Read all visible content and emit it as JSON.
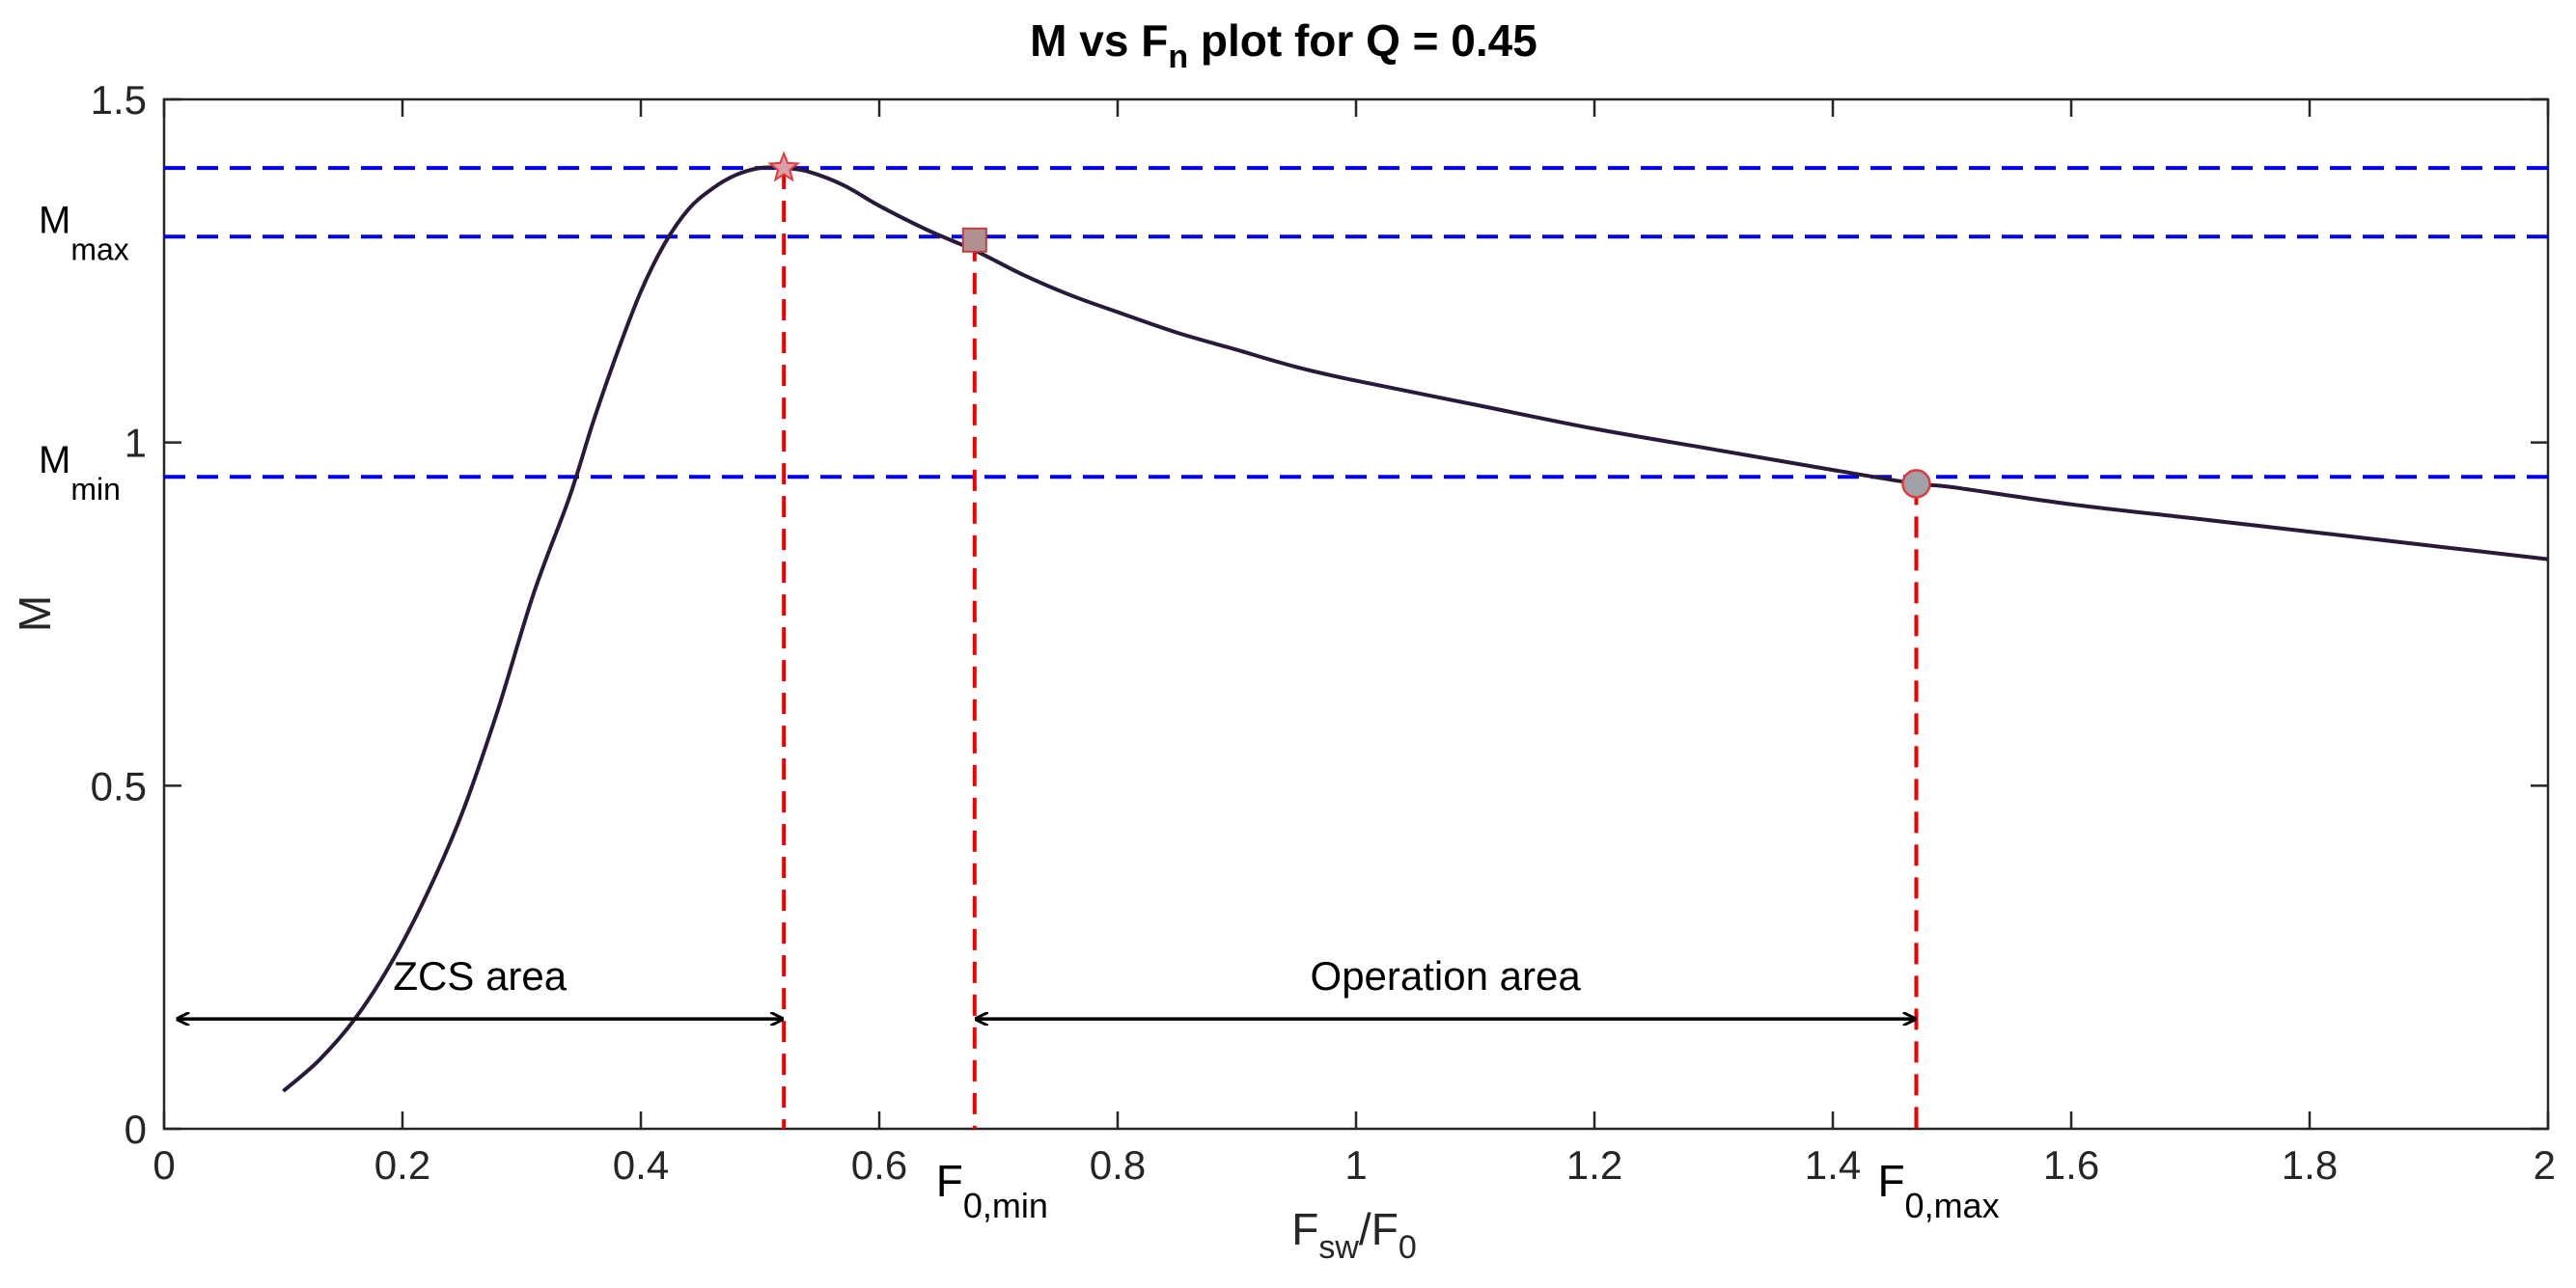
{
  "chart_data": {
    "type": "line",
    "title": {
      "main": "M vs F",
      "sub": "n",
      "rest": " plot for Q = 0.45"
    },
    "xlabel": {
      "a": "F",
      "a_sub": "sw",
      "slash": "/F",
      "b_sub": "0"
    },
    "ylabel": "M",
    "xlim": [
      0,
      2
    ],
    "ylim": [
      0,
      1.5
    ],
    "xticks": [
      0,
      0.2,
      0.4,
      0.6,
      0.8,
      1,
      1.2,
      1.4,
      1.6,
      1.8,
      2
    ],
    "xtick_labels": [
      "0",
      "0.2",
      "0.4",
      "0.6",
      "0.8",
      "1",
      "1.2",
      "1.4",
      "1.6",
      "1.8",
      "2"
    ],
    "yticks": [
      0,
      0.5,
      1,
      1.5
    ],
    "ytick_labels": [
      "0",
      "0.5",
      "1",
      "1.5"
    ],
    "grid": false,
    "series": [
      {
        "color": "#2a1a3a",
        "x": [
          0.1,
          0.13,
          0.16,
          0.19,
          0.22,
          0.25,
          0.28,
          0.31,
          0.34,
          0.36,
          0.38,
          0.4,
          0.42,
          0.44,
          0.46,
          0.48,
          0.5,
          0.52,
          0.54,
          0.57,
          0.6,
          0.64,
          0.68,
          0.72,
          0.76,
          0.8,
          0.85,
          0.9,
          0.95,
          1.0,
          1.1,
          1.2,
          1.3,
          1.4,
          1.47,
          1.5,
          1.6,
          1.7,
          1.8,
          1.9,
          2.0
        ],
        "y": [
          0.055,
          0.1,
          0.16,
          0.24,
          0.34,
          0.46,
          0.61,
          0.78,
          0.92,
          1.03,
          1.13,
          1.22,
          1.29,
          1.34,
          1.37,
          1.39,
          1.4,
          1.4,
          1.395,
          1.375,
          1.345,
          1.31,
          1.28,
          1.245,
          1.215,
          1.19,
          1.16,
          1.135,
          1.11,
          1.09,
          1.055,
          1.02,
          0.99,
          0.96,
          0.94,
          0.935,
          0.91,
          0.89,
          0.87,
          0.85,
          0.83
        ]
      }
    ],
    "hlines": [
      {
        "y": 1.4,
        "color": "#0000ee"
      },
      {
        "y": 1.3,
        "color": "#0000ee"
      },
      {
        "y": 0.95,
        "color": "#0000ee"
      }
    ],
    "vlines": [
      {
        "x": 0.52,
        "y_top": 1.4,
        "color": "#ee0000"
      },
      {
        "x": 0.68,
        "y_top": 1.295,
        "color": "#ee0000"
      },
      {
        "x": 1.47,
        "y_top": 0.94,
        "color": "#ee0000"
      }
    ],
    "markers": [
      {
        "shape": "star",
        "x": 0.52,
        "y": 1.4
      },
      {
        "shape": "square",
        "x": 0.68,
        "y": 1.295
      },
      {
        "shape": "circle",
        "x": 1.47,
        "y": 0.94
      }
    ],
    "y_annotations": [
      {
        "main": "M",
        "sub": "max",
        "y": 1.3
      },
      {
        "main": "M",
        "sub": "min",
        "y": 0.95
      }
    ],
    "x_annotations": [
      {
        "main": "F",
        "sub": "0,min",
        "x": 0.68
      },
      {
        "main": "F",
        "sub": "0,max",
        "x": 1.47
      }
    ],
    "area_annotations": [
      {
        "label": "ZCS area",
        "x_start": 0.01,
        "x_end": 0.52,
        "y": 0.16
      },
      {
        "label": "Operation area",
        "x_start": 0.68,
        "x_end": 1.47,
        "y": 0.16
      }
    ]
  }
}
